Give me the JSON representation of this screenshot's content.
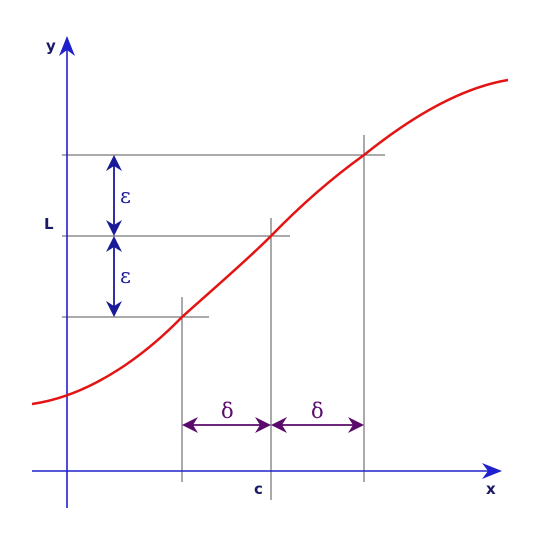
{
  "labels": {
    "x_axis": "x",
    "y_axis": "y",
    "limit": "L",
    "point": "c",
    "epsilon_upper": "ε",
    "epsilon_lower": "ε",
    "delta_left": "δ",
    "delta_right": "δ"
  },
  "colors": {
    "axes": "#2020cc",
    "curve": "#e31414",
    "guides": "#555555",
    "epsilon": "#1a1a99",
    "delta": "#5a0a6a",
    "text": "#1a1a66"
  }
}
